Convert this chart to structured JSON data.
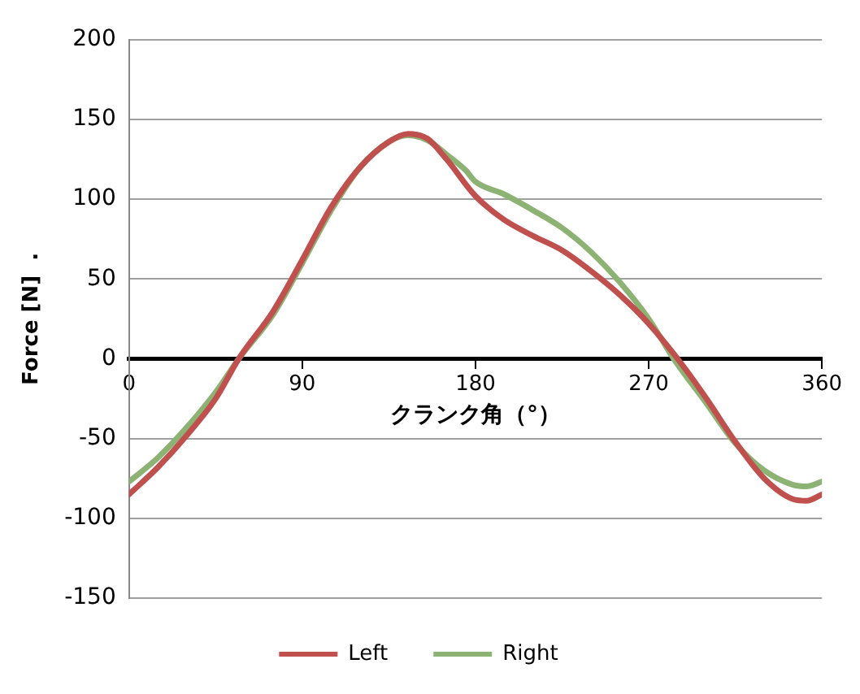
{
  "chart_data": {
    "type": "line",
    "xlabel": "クランク角（°）",
    "ylabel": "Force [N]  .",
    "xlim": [
      0,
      360
    ],
    "xticks": [
      0,
      90,
      180,
      270,
      360
    ],
    "ylim": [
      -150,
      200
    ],
    "yticks": [
      -150,
      -100,
      -50,
      0,
      50,
      100,
      150,
      200
    ],
    "grid": "y",
    "legend": "bottom",
    "marker": "none",
    "line_style": "solid",
    "series": [
      {
        "name": "Left",
        "color": "#c0504d",
        "x": [
          0,
          15,
          30,
          45,
          57,
          75,
          90,
          105,
          120,
          135,
          145,
          155,
          165,
          180,
          195,
          210,
          225,
          240,
          255,
          270,
          285,
          300,
          315,
          330,
          345,
          352,
          360
        ],
        "values": [
          -85,
          -68,
          -48,
          -25,
          0,
          30,
          62,
          95,
          120,
          136,
          141,
          138,
          125,
          102,
          87,
          77,
          68,
          55,
          40,
          22,
          0,
          -25,
          -52,
          -75,
          -88,
          -89,
          -85
        ]
      },
      {
        "name": "Right",
        "color": "#8db374",
        "x": [
          0,
          15,
          30,
          45,
          57,
          75,
          90,
          105,
          120,
          135,
          145,
          155,
          165,
          175,
          180,
          195,
          210,
          225,
          240,
          255,
          270,
          283,
          300,
          315,
          330,
          345,
          352,
          360
        ],
        "values": [
          -77,
          -62,
          -43,
          -21,
          0,
          28,
          60,
          93,
          120,
          136,
          140,
          137,
          128,
          118,
          111,
          103,
          93,
          82,
          67,
          48,
          25,
          0,
          -28,
          -53,
          -70,
          -79,
          -80,
          -77
        ]
      }
    ]
  }
}
